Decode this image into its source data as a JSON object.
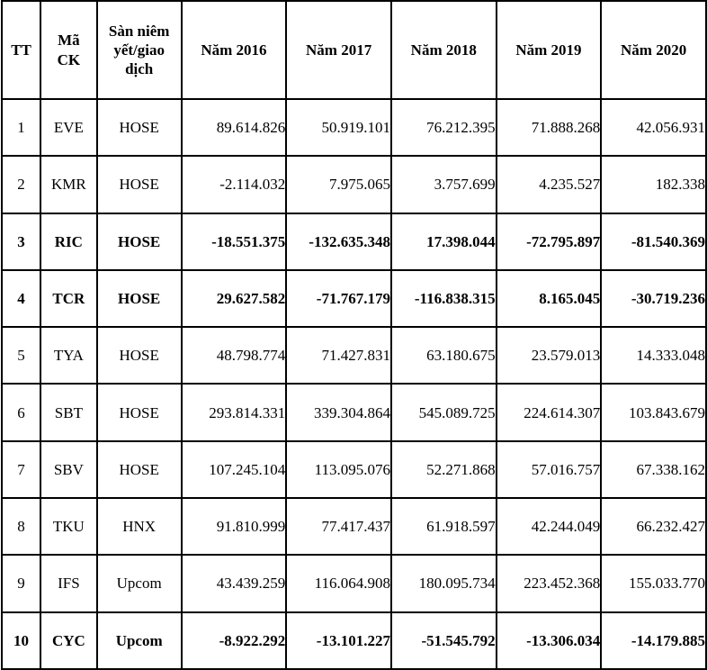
{
  "table": {
    "columns": [
      {
        "label": "TT"
      },
      {
        "label": "Mã CK"
      },
      {
        "label": "Sàn niêm yết/giao dịch"
      },
      {
        "label": "Năm 2016"
      },
      {
        "label": "Năm 2017"
      },
      {
        "label": "Năm 2018"
      },
      {
        "label": "Năm 2019"
      },
      {
        "label": "Năm 2020"
      }
    ],
    "rows": [
      {
        "tt": "1",
        "code": "EVE",
        "exchange": "HOSE",
        "bold": false,
        "values": [
          "89.614.826",
          "50.919.101",
          "76.212.395",
          "71.888.268",
          "42.056.931"
        ]
      },
      {
        "tt": "2",
        "code": "KMR",
        "exchange": "HOSE",
        "bold": false,
        "values": [
          "-2.114.032",
          "7.975.065",
          "3.757.699",
          "4.235.527",
          "182.338"
        ]
      },
      {
        "tt": "3",
        "code": "RIC",
        "exchange": "HOSE",
        "bold": true,
        "values": [
          "-18.551.375",
          "-132.635.348",
          "17.398.044",
          "-72.795.897",
          "-81.540.369"
        ]
      },
      {
        "tt": "4",
        "code": "TCR",
        "exchange": "HOSE",
        "bold": true,
        "values": [
          "29.627.582",
          "-71.767.179",
          "-116.838.315",
          "8.165.045",
          "-30.719.236"
        ]
      },
      {
        "tt": "5",
        "code": "TYA",
        "exchange": "HOSE",
        "bold": false,
        "values": [
          "48.798.774",
          "71.427.831",
          "63.180.675",
          "23.579.013",
          "14.333.048"
        ]
      },
      {
        "tt": "6",
        "code": "SBT",
        "exchange": "HOSE",
        "bold": false,
        "values": [
          "293.814.331",
          "339.304.864",
          "545.089.725",
          "224.614.307",
          "103.843.679"
        ]
      },
      {
        "tt": "7",
        "code": "SBV",
        "exchange": "HOSE",
        "bold": false,
        "values": [
          "107.245.104",
          "113.095.076",
          "52.271.868",
          "57.016.757",
          "67.338.162"
        ]
      },
      {
        "tt": "8",
        "code": "TKU",
        "exchange": "HNX",
        "bold": false,
        "values": [
          "91.810.999",
          "77.417.437",
          "61.918.597",
          "42.244.049",
          "66.232.427"
        ]
      },
      {
        "tt": "9",
        "code": "IFS",
        "exchange": "Upcom",
        "bold": false,
        "values": [
          "43.439.259",
          "116.064.908",
          "180.095.734",
          "223.452.368",
          "155.033.770"
        ]
      },
      {
        "tt": "10",
        "code": "CYC",
        "exchange": "Upcom",
        "bold": true,
        "values": [
          "-8.922.292",
          "-13.101.227",
          "-51.545.792",
          "-13.306.034",
          "-14.179.885"
        ]
      }
    ]
  }
}
